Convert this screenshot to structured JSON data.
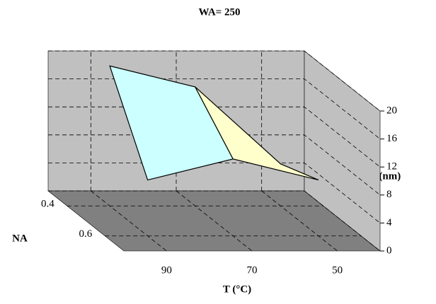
{
  "chart_data": {
    "type": "surface3d",
    "title": "WA= 250",
    "x_label": "T (°C)",
    "depth_label": "NA",
    "z_label": "Rh1 (nm)",
    "categories": [
      "90",
      "70",
      "50"
    ],
    "depth_categories": [
      "0.4",
      "0.6"
    ],
    "series": [
      {
        "name": "0.4",
        "values": [
          20,
          17,
          6
        ]
      },
      {
        "name": "0.6",
        "values": [
          8,
          11,
          8
        ]
      }
    ],
    "zlim": [
      0,
      20
    ],
    "zticks": [
      0,
      4,
      8,
      12,
      16,
      20
    ],
    "grid": true,
    "band_colors": [
      "#9999ff",
      "#993366",
      "#ffffcc",
      "#ccffff",
      "#660066"
    ],
    "wall_color": "#c0c0c0",
    "floor_color": "#808080"
  }
}
